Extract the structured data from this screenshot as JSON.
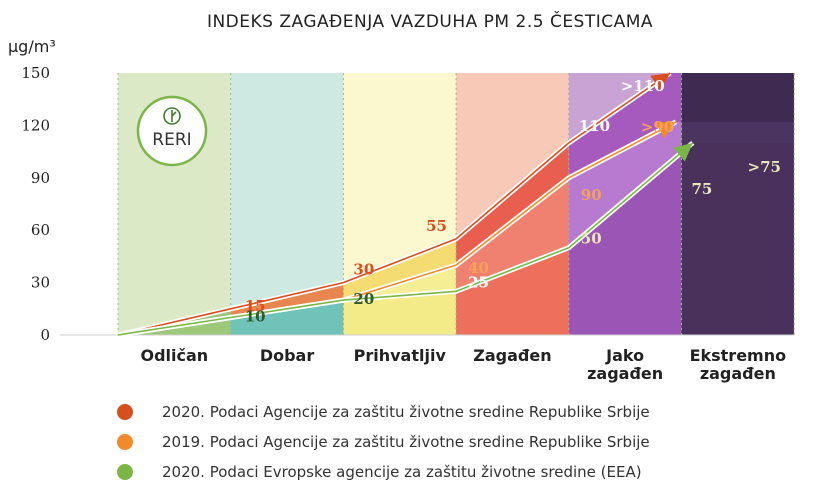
{
  "chart_data": {
    "type": "line",
    "title": "INDEKS ZAGAĐENJA VAZDUHA PM 2.5 ČESTICAMA",
    "ylabel": "μg/m³",
    "ylim": [
      0,
      150
    ],
    "yticks": [
      "0",
      "30",
      "60",
      "90",
      "120",
      "150"
    ],
    "categories": [
      "Odličan",
      "Dobar",
      "Prihvatljiv",
      "Zagađen",
      "Jako zagađen",
      "Ekstremno zagađen"
    ],
    "category_lines": [
      [
        "Odličan"
      ],
      [
        "Dobar"
      ],
      [
        "Prihvatljiv"
      ],
      [
        "Zagađen"
      ],
      [
        "Jako",
        "zagađen"
      ],
      [
        "Ekstremno",
        "zagađen"
      ]
    ],
    "band_colors": [
      "#dbe9c6",
      "#cde9e2",
      "#fbf8cf",
      "#f8c9b7",
      "#c8a3d4",
      "#5e3f6c"
    ],
    "series": [
      {
        "name": "2020. Podaci Agencije za zaštitu životne sredine Republike Srbije",
        "color": "#d94e1f",
        "band_fill_colors": [
          "#9ec37d",
          "#e7864e",
          "#f4dc72",
          "#e85f50",
          "#a65abd",
          "#3f2a52"
        ],
        "x": [
          0,
          1,
          2,
          3,
          4,
          4.9
        ],
        "values": [
          0,
          15,
          30,
          55,
          110,
          150
        ],
        "labels": [
          "15",
          "30",
          "55",
          "110",
          ">110"
        ]
      },
      {
        "name": "2019. Podaci Agencije za zaštitu životne sredine Republike Srbije",
        "color": "#f08a2a",
        "band_fill_colors": [
          "#a9cd8a",
          "#b9dda8",
          "#f6ee94",
          "#f08070",
          "#b77ad0",
          "#4c3460"
        ],
        "x": [
          0,
          1,
          2,
          3,
          4,
          4.95
        ],
        "values": [
          0,
          10,
          20,
          40,
          90,
          122
        ],
        "labels": [
          "40",
          "90",
          ">90"
        ]
      },
      {
        "name": "2020. Podaci Evropske agencije za zaštitu životne sredine (EEA)",
        "color": "#7ab648",
        "band_fill_colors": [
          "#9cc97a",
          "#6fc3b8",
          "#f3ea88",
          "#ee6f5c",
          "#9b55b4",
          "#4a315c"
        ],
        "x": [
          0,
          1,
          2,
          3,
          4,
          5.1
        ],
        "values": [
          0,
          10,
          20,
          25,
          50,
          110
        ],
        "labels": [
          "10",
          "20",
          "25",
          "50",
          "75",
          ">75"
        ]
      }
    ],
    "legend_position": "bottom",
    "logo_text": "RERI"
  }
}
